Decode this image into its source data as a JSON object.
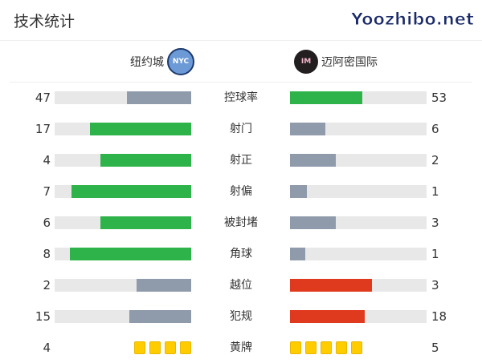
{
  "title": "技术统计",
  "home": {
    "name": "纽约城",
    "logo_text": "NYC",
    "logo_color": "#6c9ad6"
  },
  "away": {
    "name": "迈阿密国际",
    "logo_text": "IM",
    "logo_color": "#231f20"
  },
  "colors": {
    "green": "#2eb34a",
    "gray": "#8f9aab",
    "red": "#e03a1e",
    "track": "#e8e8e8",
    "card": "#ffcc00"
  },
  "stats": [
    {
      "label": "控球率",
      "home": 47,
      "away": 53,
      "home_color": "gray",
      "away_color": "green"
    },
    {
      "label": "射门",
      "home": 17,
      "away": 6,
      "home_color": "green",
      "away_color": "gray"
    },
    {
      "label": "射正",
      "home": 4,
      "away": 2,
      "home_color": "green",
      "away_color": "gray"
    },
    {
      "label": "射偏",
      "home": 7,
      "away": 1,
      "home_color": "green",
      "away_color": "gray"
    },
    {
      "label": "被封堵",
      "home": 6,
      "away": 3,
      "home_color": "green",
      "away_color": "gray"
    },
    {
      "label": "角球",
      "home": 8,
      "away": 1,
      "home_color": "green",
      "away_color": "gray"
    },
    {
      "label": "越位",
      "home": 2,
      "away": 3,
      "home_color": "gray",
      "away_color": "red"
    },
    {
      "label": "犯规",
      "home": 15,
      "away": 18,
      "home_color": "gray",
      "away_color": "red"
    }
  ],
  "yellow_cards": {
    "label": "黄牌",
    "home": 4,
    "away": 5
  },
  "watermark": "Yoozhibo.net"
}
